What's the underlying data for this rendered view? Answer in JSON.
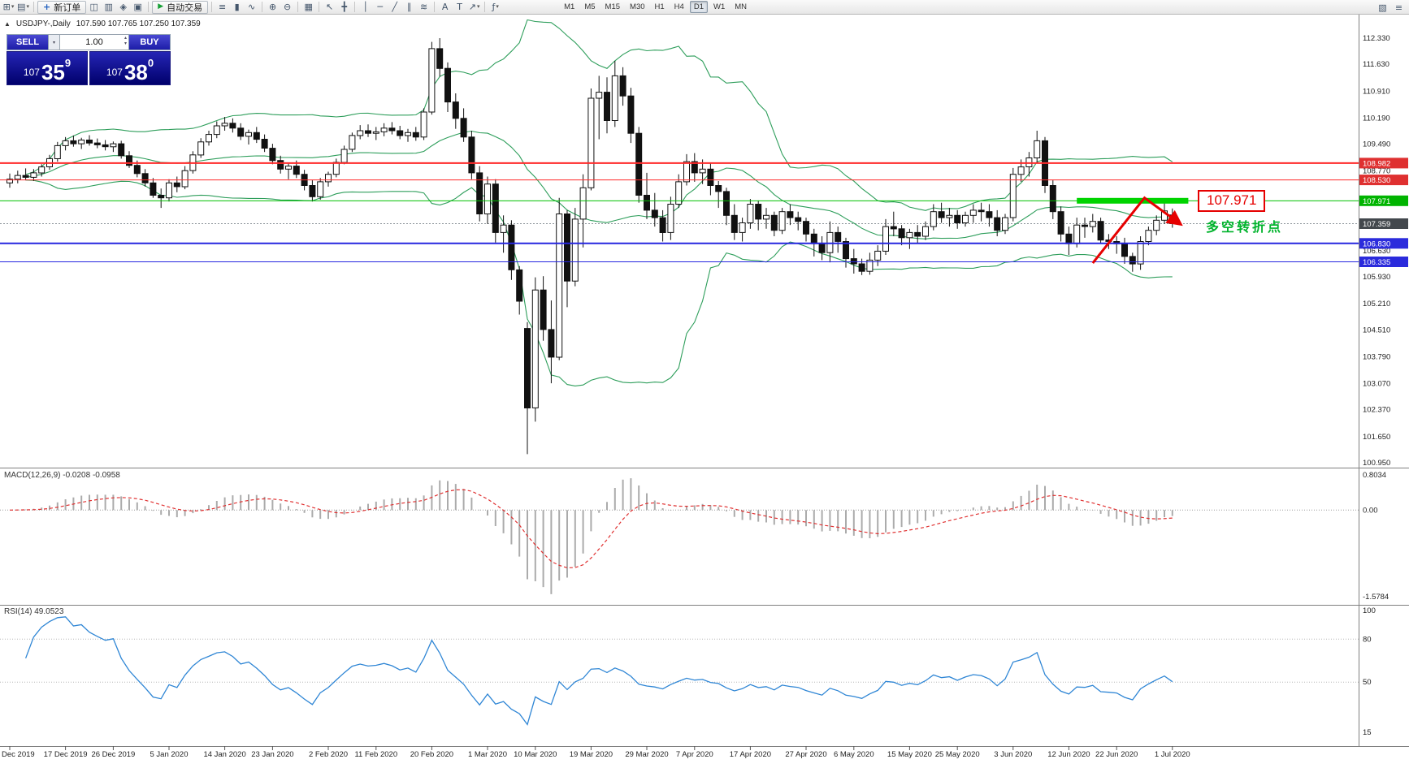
{
  "toolbar": {
    "new_order": "新订单",
    "autotrading": "自动交易",
    "timeframes": [
      "M1",
      "M5",
      "M15",
      "M30",
      "H1",
      "H4",
      "D1",
      "W1",
      "MN"
    ],
    "active_timeframe": "D1"
  },
  "icons": {
    "new_chart": "⊞",
    "profiles": "▤",
    "dropdown": "▾",
    "new_order": "+",
    "market_watch": "◫",
    "data_window": "▥",
    "navigator": "◈",
    "terminal": "▣",
    "play": "▶",
    "bar_chart": "≡",
    "candles": "▮",
    "line_chart": "∿",
    "zoom_in": "⊕",
    "zoom_out": "⊖",
    "tile": "▦",
    "cursor": "↖",
    "crosshair": "╋",
    "vline": "│",
    "hline": "─",
    "trendline": "╱",
    "channel": "∥",
    "fibonacci": "≋",
    "text": "A",
    "text_label": "T",
    "arrows": "↗",
    "indicators": "ƒ",
    "collapse": "▲",
    "up": "▴",
    "down": "▾",
    "layout": "▧",
    "menu": "≡"
  },
  "chart": {
    "symbol": "USDJPY-,Daily",
    "ohlc": "107.590 107.765 107.250 107.359"
  },
  "trade": {
    "sell_label": "SELL",
    "buy_label": "BUY",
    "volume": "1.00",
    "sell_price": {
      "main": "107",
      "big": "35",
      "sup": "9"
    },
    "buy_price": {
      "main": "107",
      "big": "38",
      "sup": "0"
    }
  },
  "panels": {
    "macd_label": "MACD(12,26,9) -0.0208 -0.0958",
    "rsi_label": "RSI(14) 49.0523"
  },
  "annotations": {
    "price_callout": "107.971",
    "turning_point": "多空转折点"
  },
  "chart_data": {
    "type": "candlestick",
    "symbol": "USDJPY-, Daily",
    "ylim": [
      100.95,
      112.33
    ],
    "y_axis_labels": [
      "112.330",
      "111.630",
      "110.910",
      "110.190",
      "109.490",
      "108.770",
      "106.630",
      "105.930",
      "105.210",
      "104.510",
      "103.790",
      "103.070",
      "102.370",
      "101.650",
      "100.950"
    ],
    "price_tags": [
      {
        "label": "108.982",
        "price": 108.982,
        "bg": "#df3030"
      },
      {
        "label": "108.530",
        "price": 108.53,
        "bg": "#df3030"
      },
      {
        "label": "107.971",
        "price": 107.971,
        "bg": "#00b400"
      },
      {
        "label": "107.359",
        "price": 107.359,
        "bg": "#43484d"
      },
      {
        "label": "106.830",
        "price": 106.83,
        "bg": "#2b2bdc"
      },
      {
        "label": "106.335",
        "price": 106.335,
        "bg": "#2b2bdc"
      }
    ],
    "hlines": [
      {
        "price": 108.982,
        "color": "#ff2a2a",
        "width": 2
      },
      {
        "price": 108.53,
        "color": "#ff2a2a",
        "width": 1
      },
      {
        "price": 107.971,
        "color": "#00c000",
        "width": 1
      },
      {
        "price": 107.359,
        "color": "#8c939a",
        "width": 1,
        "dash": "2,2"
      },
      {
        "price": 106.83,
        "color": "#2626e0",
        "width": 2
      },
      {
        "price": 106.335,
        "color": "#2626e0",
        "width": 1
      }
    ],
    "x_axis_labels": [
      "Dec 2019",
      "17 Dec 2019",
      "26 Dec 2019",
      "5 Jan 2020",
      "14 Jan 2020",
      "23 Jan 2020",
      "2 Feb 2020",
      "11 Feb 2020",
      "20 Feb 2020",
      "1 Mar 2020",
      "10 Mar 2020",
      "19 Mar 2020",
      "29 Mar 2020",
      "7 Apr 2020",
      "17 Apr 2020",
      "27 Apr 2020",
      "6 May 2020",
      "15 May 2020",
      "25 May 2020",
      "3 Jun 2020",
      "12 Jun 2020",
      "22 Jun 2020",
      "1 Jul 2020"
    ],
    "bollinger": {
      "period": 20,
      "deviation": 1.8,
      "color": "#2e9e5b"
    },
    "macd": {
      "label": "MACD(12,26,9)",
      "value": -0.0208,
      "signal": -0.0958,
      "axis": [
        "0.8034",
        "0.00",
        "-1.5784"
      ]
    },
    "rsi": {
      "label": "RSI(14)",
      "value": 49.0523,
      "axis": [
        "100",
        "80",
        "50",
        "15"
      ],
      "levels": [
        80,
        50
      ],
      "color": "#2f86d5"
    },
    "green_zone": {
      "price": 107.971,
      "start_index": 134,
      "end_index": 148
    },
    "arrow": {
      "color": "#e60000",
      "points": [
        [
          136,
          106.3
        ],
        [
          142.5,
          108.05
        ],
        [
          147,
          107.35
        ]
      ]
    },
    "candles": [
      [
        108.45,
        108.7,
        108.32,
        108.55
      ],
      [
        108.55,
        108.78,
        108.44,
        108.65
      ],
      [
        108.65,
        108.84,
        108.52,
        108.6
      ],
      [
        108.6,
        108.82,
        108.5,
        108.72
      ],
      [
        108.72,
        108.95,
        108.62,
        108.88
      ],
      [
        108.88,
        109.2,
        108.8,
        109.1
      ],
      [
        109.1,
        109.55,
        109.02,
        109.45
      ],
      [
        109.45,
        109.68,
        109.32,
        109.58
      ],
      [
        109.58,
        109.72,
        109.42,
        109.5
      ],
      [
        109.5,
        109.66,
        109.36,
        109.6
      ],
      [
        109.6,
        109.73,
        109.45,
        109.52
      ],
      [
        109.52,
        109.64,
        109.38,
        109.47
      ],
      [
        109.47,
        109.6,
        109.32,
        109.42
      ],
      [
        109.42,
        109.56,
        109.28,
        109.5
      ],
      [
        109.5,
        109.58,
        109.1,
        109.18
      ],
      [
        109.18,
        109.3,
        108.85,
        108.92
      ],
      [
        108.92,
        109.05,
        108.6,
        108.7
      ],
      [
        108.7,
        108.82,
        108.35,
        108.45
      ],
      [
        108.45,
        108.58,
        108.05,
        108.12
      ],
      [
        108.12,
        108.3,
        107.78,
        108.05
      ],
      [
        108.05,
        108.55,
        107.95,
        108.45
      ],
      [
        108.45,
        108.62,
        108.2,
        108.35
      ],
      [
        108.35,
        108.9,
        108.28,
        108.78
      ],
      [
        108.78,
        109.3,
        108.7,
        109.2
      ],
      [
        109.2,
        109.65,
        109.12,
        109.55
      ],
      [
        109.55,
        109.85,
        109.45,
        109.75
      ],
      [
        109.75,
        110.1,
        109.65,
        109.98
      ],
      [
        109.98,
        110.22,
        109.85,
        110.05
      ],
      [
        110.05,
        110.18,
        109.8,
        109.92
      ],
      [
        109.92,
        110.05,
        109.6,
        109.7
      ],
      [
        109.7,
        109.88,
        109.48,
        109.8
      ],
      [
        109.8,
        109.95,
        109.52,
        109.62
      ],
      [
        109.62,
        109.75,
        109.28,
        109.38
      ],
      [
        109.38,
        109.5,
        108.95,
        109.05
      ],
      [
        109.05,
        109.18,
        108.7,
        108.82
      ],
      [
        108.82,
        109.0,
        108.55,
        108.9
      ],
      [
        108.9,
        109.05,
        108.58,
        108.68
      ],
      [
        108.68,
        108.8,
        108.25,
        108.38
      ],
      [
        108.38,
        108.52,
        107.95,
        108.08
      ],
      [
        108.08,
        108.58,
        108.0,
        108.48
      ],
      [
        108.48,
        108.75,
        108.35,
        108.68
      ],
      [
        108.68,
        109.1,
        108.6,
        109.0
      ],
      [
        109.0,
        109.45,
        108.95,
        109.35
      ],
      [
        109.35,
        109.8,
        109.28,
        109.72
      ],
      [
        109.72,
        110.0,
        109.62,
        109.85
      ],
      [
        109.85,
        110.02,
        109.68,
        109.78
      ],
      [
        109.78,
        109.95,
        109.6,
        109.82
      ],
      [
        109.82,
        110.05,
        109.7,
        109.92
      ],
      [
        109.92,
        110.08,
        109.75,
        109.85
      ],
      [
        109.85,
        109.98,
        109.62,
        109.72
      ],
      [
        109.72,
        109.9,
        109.55,
        109.8
      ],
      [
        109.8,
        109.95,
        109.58,
        109.68
      ],
      [
        109.68,
        110.45,
        109.6,
        110.35
      ],
      [
        110.35,
        112.23,
        110.28,
        112.05
      ],
      [
        112.05,
        112.33,
        111.3,
        111.52
      ],
      [
        111.52,
        111.68,
        110.35,
        110.62
      ],
      [
        110.62,
        110.85,
        109.9,
        110.18
      ],
      [
        110.18,
        110.45,
        109.55,
        109.68
      ],
      [
        109.68,
        109.85,
        108.55,
        108.72
      ],
      [
        108.72,
        108.9,
        107.42,
        107.62
      ],
      [
        107.62,
        108.62,
        107.35,
        108.42
      ],
      [
        108.42,
        108.55,
        106.85,
        107.12
      ],
      [
        107.12,
        107.58,
        106.58,
        107.32
      ],
      [
        107.32,
        107.45,
        105.85,
        106.12
      ],
      [
        106.12,
        106.22,
        104.92,
        105.28
      ],
      [
        104.55,
        104.72,
        101.18,
        102.42
      ],
      [
        102.42,
        105.92,
        102.05,
        105.58
      ],
      [
        105.58,
        105.95,
        104.22,
        104.52
      ],
      [
        104.52,
        105.3,
        103.08,
        103.78
      ],
      [
        103.78,
        108.05,
        103.7,
        107.62
      ],
      [
        107.62,
        107.72,
        105.12,
        105.82
      ],
      [
        105.82,
        107.78,
        105.68,
        107.48
      ],
      [
        107.48,
        108.68,
        106.72,
        108.32
      ],
      [
        108.32,
        110.98,
        108.25,
        110.72
      ],
      [
        110.72,
        111.32,
        109.62,
        110.88
      ],
      [
        110.88,
        111.28,
        109.78,
        110.12
      ],
      [
        110.12,
        111.72,
        109.95,
        111.32
      ],
      [
        111.32,
        111.55,
        110.52,
        110.78
      ],
      [
        110.78,
        111.0,
        109.52,
        109.78
      ],
      [
        109.78,
        109.95,
        107.92,
        108.12
      ],
      [
        108.12,
        108.72,
        107.48,
        107.72
      ],
      [
        107.72,
        108.18,
        107.28,
        107.52
      ],
      [
        107.52,
        107.72,
        106.88,
        107.12
      ],
      [
        107.12,
        108.08,
        106.92,
        107.88
      ],
      [
        107.88,
        108.68,
        107.78,
        108.48
      ],
      [
        108.48,
        109.22,
        108.38,
        109.02
      ],
      [
        109.02,
        109.25,
        108.48,
        108.72
      ],
      [
        108.72,
        109.08,
        108.42,
        108.82
      ],
      [
        108.82,
        108.98,
        108.12,
        108.38
      ],
      [
        108.38,
        108.5,
        107.78,
        108.22
      ],
      [
        108.22,
        108.32,
        107.32,
        107.58
      ],
      [
        107.58,
        107.88,
        106.92,
        107.12
      ],
      [
        107.12,
        107.52,
        106.88,
        107.38
      ],
      [
        107.38,
        108.02,
        107.22,
        107.88
      ],
      [
        107.88,
        107.98,
        107.18,
        107.48
      ],
      [
        107.48,
        107.78,
        107.22,
        107.58
      ],
      [
        107.58,
        107.68,
        107.02,
        107.18
      ],
      [
        107.18,
        107.78,
        107.08,
        107.68
      ],
      [
        107.68,
        107.88,
        107.32,
        107.52
      ],
      [
        107.52,
        107.68,
        107.18,
        107.42
      ],
      [
        107.42,
        107.52,
        106.88,
        107.08
      ],
      [
        107.08,
        107.22,
        106.48,
        106.82
      ],
      [
        106.82,
        107.02,
        106.38,
        106.58
      ],
      [
        106.58,
        107.42,
        106.32,
        107.12
      ],
      [
        107.12,
        107.28,
        106.58,
        106.88
      ],
      [
        106.88,
        106.98,
        106.18,
        106.42
      ],
      [
        106.42,
        106.68,
        106.02,
        106.28
      ],
      [
        106.28,
        106.42,
        105.98,
        106.08
      ],
      [
        106.08,
        106.58,
        105.99,
        106.38
      ],
      [
        106.38,
        106.78,
        106.22,
        106.62
      ],
      [
        106.62,
        107.48,
        106.52,
        107.28
      ],
      [
        107.28,
        107.68,
        107.02,
        107.22
      ],
      [
        107.22,
        107.32,
        106.78,
        106.98
      ],
      [
        106.98,
        107.22,
        106.68,
        107.12
      ],
      [
        107.12,
        107.32,
        106.82,
        107.02
      ],
      [
        107.02,
        107.42,
        106.92,
        107.28
      ],
      [
        107.28,
        107.88,
        107.18,
        107.68
      ],
      [
        107.68,
        107.92,
        107.38,
        107.52
      ],
      [
        107.52,
        107.78,
        107.28,
        107.58
      ],
      [
        107.58,
        107.72,
        107.22,
        107.38
      ],
      [
        107.38,
        107.68,
        107.28,
        107.58
      ],
      [
        107.58,
        107.88,
        107.38,
        107.72
      ],
      [
        107.72,
        107.92,
        107.42,
        107.68
      ],
      [
        107.68,
        107.88,
        107.28,
        107.52
      ],
      [
        107.52,
        107.72,
        107.02,
        107.18
      ],
      [
        107.18,
        107.62,
        107.08,
        107.52
      ],
      [
        107.52,
        108.85,
        107.42,
        108.68
      ],
      [
        108.68,
        109.08,
        108.48,
        108.88
      ],
      [
        108.88,
        109.28,
        108.62,
        109.12
      ],
      [
        109.12,
        109.85,
        108.98,
        109.58
      ],
      [
        109.58,
        109.68,
        108.18,
        108.38
      ],
      [
        108.38,
        108.52,
        107.48,
        107.68
      ],
      [
        107.68,
        107.82,
        106.88,
        107.08
      ],
      [
        107.08,
        107.28,
        106.52,
        106.82
      ],
      [
        106.82,
        107.52,
        106.72,
        107.32
      ],
      [
        107.32,
        107.52,
        106.98,
        107.28
      ],
      [
        107.28,
        107.62,
        107.12,
        107.42
      ],
      [
        107.42,
        107.52,
        106.82,
        106.92
      ],
      [
        106.92,
        107.08,
        106.68,
        106.88
      ],
      [
        106.88,
        107.02,
        106.55,
        106.82
      ],
      [
        106.82,
        106.98,
        106.28,
        106.48
      ],
      [
        106.48,
        106.58,
        106.07,
        106.28
      ],
      [
        106.28,
        107.02,
        106.12,
        106.88
      ],
      [
        106.88,
        107.28,
        106.78,
        107.18
      ],
      [
        107.18,
        107.58,
        107.05,
        107.45
      ],
      [
        107.45,
        107.97,
        107.35,
        107.7
      ],
      [
        107.59,
        107.765,
        107.25,
        107.359
      ]
    ]
  }
}
